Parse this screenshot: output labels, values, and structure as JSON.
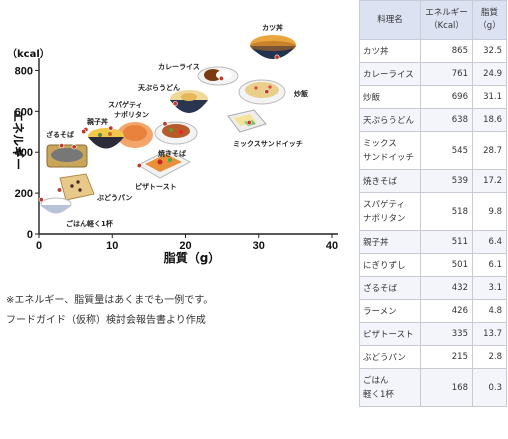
{
  "chart_data": {
    "type": "scatter",
    "title": "",
    "xlabel": "脂質（g）",
    "ylabel": "エネルギー",
    "y_unit": "（kcal）",
    "xlim": [
      0,
      40
    ],
    "ylim": [
      0,
      900
    ],
    "x_ticks": [
      0,
      10,
      20,
      30,
      40
    ],
    "y_ticks": [
      0,
      200,
      400,
      600,
      800
    ],
    "grid": false,
    "points": [
      {
        "label": "カツ丼",
        "x": 32.5,
        "y": 865
      },
      {
        "label": "カレーライス",
        "x": 24.9,
        "y": 761
      },
      {
        "label": "炒飯",
        "x": 31.1,
        "y": 696
      },
      {
        "label": "天ぷらうどん",
        "x": 18.6,
        "y": 638
      },
      {
        "label": "ミックスサンドイッチ",
        "x": 28.7,
        "y": 545
      },
      {
        "label": "焼きそば",
        "x": 17.2,
        "y": 539
      },
      {
        "label": "スパゲティナポリタン",
        "x": 9.8,
        "y": 518
      },
      {
        "label": "親子丼",
        "x": 6.4,
        "y": 511
      },
      {
        "label": "にぎりずし",
        "x": 6.1,
        "y": 501
      },
      {
        "label": "ざるそば",
        "x": 3.1,
        "y": 432
      },
      {
        "label": "ラーメン",
        "x": 4.8,
        "y": 426
      },
      {
        "label": "ピザトースト",
        "x": 13.7,
        "y": 335
      },
      {
        "label": "ぶどうパン",
        "x": 2.8,
        "y": 215
      },
      {
        "label": "ごはん軽く1杯",
        "x": 0.3,
        "y": 168
      }
    ]
  },
  "chart_labels": {
    "katsudon": "カツ丼",
    "curry": "カレーライス",
    "tempura_udon": "天ぷらうどん",
    "napolitan_line1": "スパゲティ",
    "napolitan_line2": "ナポリタン",
    "chahan": "炒飯",
    "oyakodon": "親子丼",
    "zarusoba": "ざるそば",
    "yakisoba": "焼きそば",
    "mixsand": "ミックスサンドイッチ",
    "pizza": "ピザトースト",
    "budou": "ぶどうパン",
    "gohan": "ごはん軽く1杯"
  },
  "notes": {
    "line1": "※エネルギー、脂質量はあくまでも一例です。",
    "line2": "フードガイド（仮称）検討会報告書より作成"
  },
  "table": {
    "headers": {
      "name": "料理名",
      "energy_line1": "エネルギー",
      "energy_line2": "（Kcal）",
      "fat_line1": "脂質",
      "fat_line2": "（g）"
    },
    "rows": [
      {
        "name1": "カツ丼",
        "name2": "",
        "energy": "865",
        "fat": "32.5"
      },
      {
        "name1": "カレーライス",
        "name2": "",
        "energy": "761",
        "fat": "24.9"
      },
      {
        "name1": "炒飯",
        "name2": "",
        "energy": "696",
        "fat": "31.1"
      },
      {
        "name1": "天ぷらうどん",
        "name2": "",
        "energy": "638",
        "fat": "18.6"
      },
      {
        "name1": "ミックス",
        "name2": "サンドイッチ",
        "energy": "545",
        "fat": "28.7"
      },
      {
        "name1": "焼きそば",
        "name2": "",
        "energy": "539",
        "fat": "17.2"
      },
      {
        "name1": "スパゲティ",
        "name2": "ナポリタン",
        "energy": "518",
        "fat": "9.8"
      },
      {
        "name1": "親子丼",
        "name2": "",
        "energy": "511",
        "fat": "6.4"
      },
      {
        "name1": "にぎりずし",
        "name2": "",
        "energy": "501",
        "fat": "6.1"
      },
      {
        "name1": "ざるそば",
        "name2": "",
        "energy": "432",
        "fat": "3.1"
      },
      {
        "name1": "ラーメン",
        "name2": "",
        "energy": "426",
        "fat": "4.8"
      },
      {
        "name1": "ピザトースト",
        "name2": "",
        "energy": "335",
        "fat": "13.7"
      },
      {
        "name1": "ぶどうパン",
        "name2": "",
        "energy": "215",
        "fat": "2.8"
      },
      {
        "name1": "ごはん",
        "name2": "軽く1杯",
        "energy": "168",
        "fat": "0.3"
      }
    ]
  }
}
